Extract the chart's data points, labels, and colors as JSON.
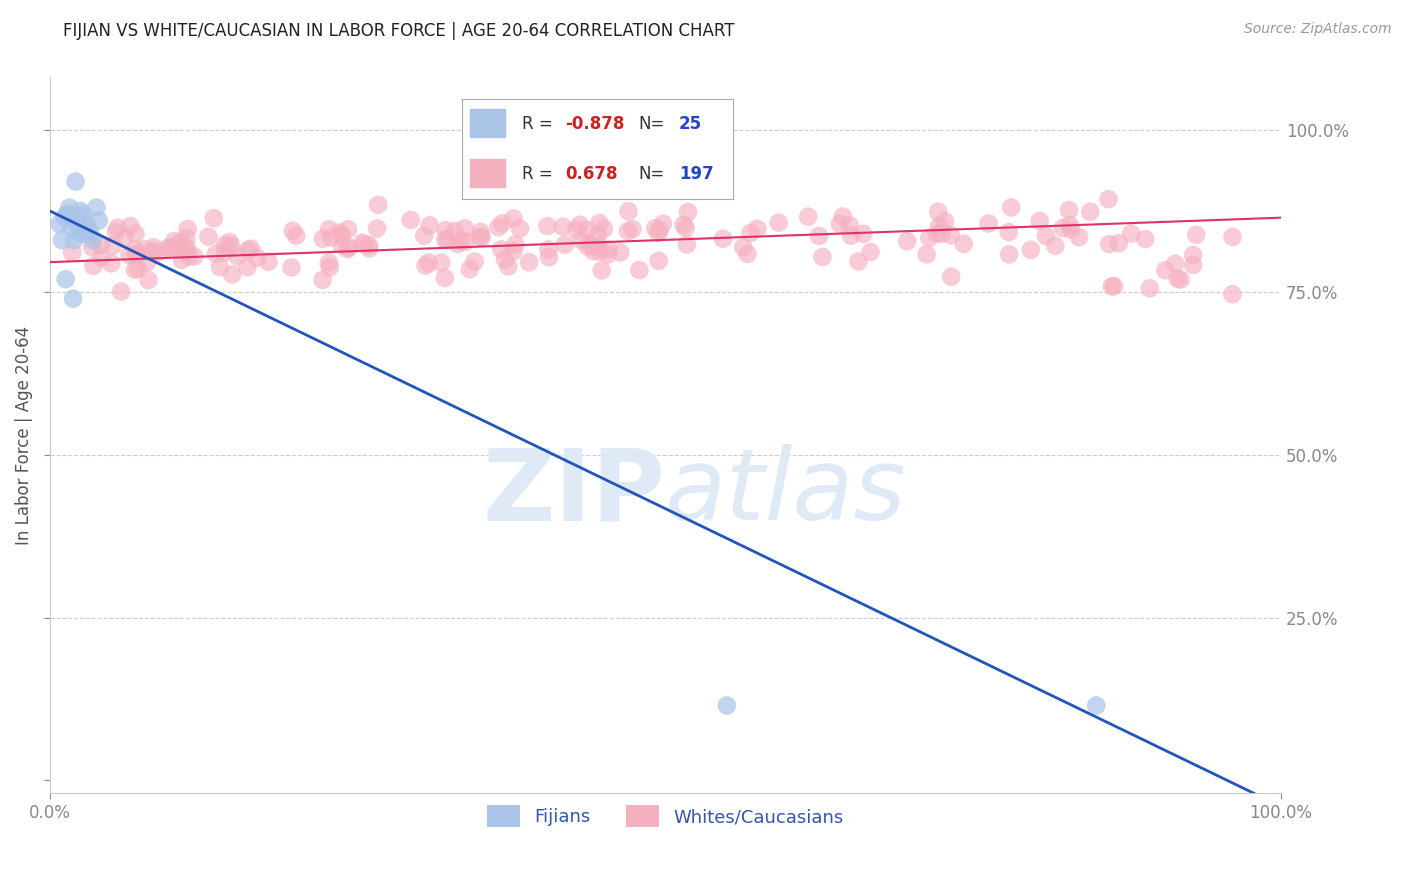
{
  "title": "FIJIAN VS WHITE/CAUCASIAN IN LABOR FORCE | AGE 20-64 CORRELATION CHART",
  "source_text": "Source: ZipAtlas.com",
  "ylabel": "In Labor Force | Age 20-64",
  "fijian_R": -0.878,
  "fijian_N": 25,
  "white_R": 0.678,
  "white_N": 197,
  "legend_labels": [
    "Fijians",
    "Whites/Caucasians"
  ],
  "fijian_color": "#aac4e8",
  "white_color": "#f5b0c0",
  "fijian_line_color": "#2255bb",
  "white_line_color": "#dd3366",
  "background_color": "#ffffff",
  "title_color": "#222222",
  "source_color": "#999999",
  "axis_label_color": "#555555",
  "tick_color": "#888888",
  "grid_color": "#cccccc",
  "legend_text_color": "#3355aa",
  "xlim": [
    0.0,
    1.0
  ],
  "ylim": [
    -0.02,
    1.08
  ],
  "fijian_x": [
    0.008,
    0.012,
    0.015,
    0.018,
    0.02,
    0.022,
    0.025,
    0.028,
    0.03,
    0.032,
    0.035,
    0.01,
    0.014,
    0.016,
    0.024,
    0.027,
    0.013,
    0.019,
    0.04,
    0.038,
    0.55,
    0.85,
    0.023,
    0.033,
    0.021
  ],
  "fijian_y": [
    0.855,
    0.865,
    0.87,
    0.85,
    0.83,
    0.855,
    0.875,
    0.84,
    0.855,
    0.845,
    0.83,
    0.83,
    0.87,
    0.88,
    0.84,
    0.87,
    0.77,
    0.74,
    0.86,
    0.88,
    0.115,
    0.115,
    0.865,
    0.84,
    0.92
  ],
  "white_seed": 123,
  "watermark_color": "#dce8f5",
  "ytick_right_color": "#3366cc"
}
